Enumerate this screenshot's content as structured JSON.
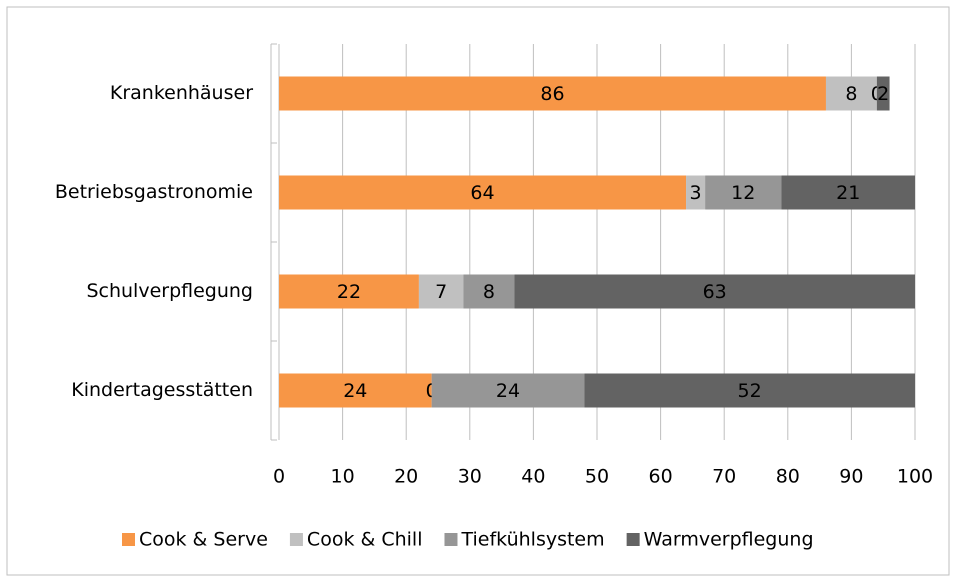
{
  "chart_data": {
    "type": "stacked-bar-horizontal",
    "categories": [
      "Krankenhäuser",
      "Betriebsgastronomie",
      "Schulverpflegung",
      "Kindertagesstätten"
    ],
    "series": [
      {
        "name": "Cook & Serve",
        "color": "#f79646",
        "values": [
          86,
          64,
          22,
          24
        ]
      },
      {
        "name": "Cook & Chill",
        "color": "#c0c0c0",
        "values": [
          8,
          3,
          7,
          0
        ]
      },
      {
        "name": "Tiefkühlsystem",
        "color": "#969696",
        "values": [
          0,
          12,
          8,
          24
        ]
      },
      {
        "name": "Warmverpflegung",
        "color": "#636363",
        "values": [
          2,
          21,
          63,
          52
        ]
      }
    ],
    "xlim": [
      0,
      100
    ],
    "xticks": [
      0,
      10,
      20,
      30,
      40,
      50,
      60,
      70,
      80,
      90,
      100
    ],
    "grid": true,
    "legend": "bottom"
  }
}
